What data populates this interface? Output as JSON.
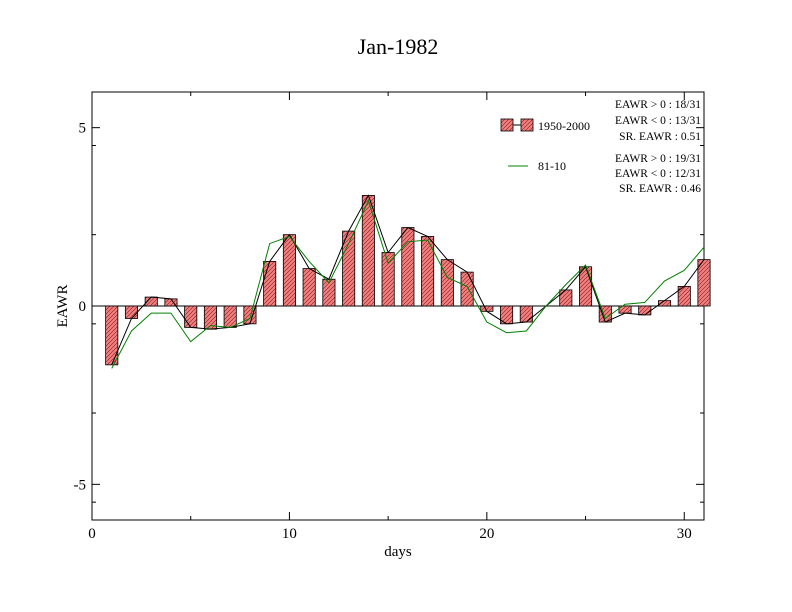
{
  "chart_data": {
    "type": "bar",
    "title": "Jan-1982",
    "xlabel": "days",
    "ylabel": "EAWR",
    "xlim": [
      0,
      31
    ],
    "ylim": [
      -6,
      6
    ],
    "xticks": [
      0,
      10,
      20,
      30
    ],
    "yticks": [
      -5,
      0,
      5
    ],
    "grid": false,
    "legend_position": "top-right",
    "x": [
      1,
      2,
      3,
      4,
      5,
      6,
      7,
      8,
      9,
      10,
      11,
      12,
      13,
      14,
      15,
      16,
      17,
      18,
      19,
      20,
      21,
      22,
      23,
      24,
      25,
      26,
      27,
      28,
      29,
      30,
      31
    ],
    "series": [
      {
        "name": "1950-2000",
        "kind": "bar",
        "fill_color": "#f08080",
        "stroke_color": "#000000",
        "values": [
          -1.65,
          -0.35,
          0.25,
          0.2,
          -0.6,
          -0.65,
          -0.6,
          -0.5,
          1.25,
          2.0,
          1.05,
          0.75,
          2.1,
          3.1,
          1.5,
          2.2,
          1.95,
          1.3,
          0.95,
          -0.15,
          -0.5,
          -0.45,
          0.0,
          0.45,
          1.1,
          -0.45,
          -0.2,
          -0.25,
          0.15,
          0.55,
          1.3
        ],
        "stats": [
          "EAWR > 0 : 18/31",
          "EAWR < 0 : 13/31",
          "SR. EAWR :  0.51"
        ]
      },
      {
        "name": "81-10",
        "kind": "line",
        "color": "#008000",
        "values": [
          -1.75,
          -0.7,
          -0.2,
          -0.2,
          -1.0,
          -0.55,
          -0.6,
          -0.35,
          1.75,
          1.95,
          1.25,
          0.65,
          1.75,
          2.95,
          1.2,
          1.8,
          1.85,
          0.8,
          0.55,
          -0.45,
          -0.75,
          -0.7,
          0.0,
          0.6,
          1.15,
          -0.35,
          0.05,
          0.1,
          0.7,
          1.0,
          1.65
        ],
        "stats": [
          "EAWR > 0 : 19/31",
          "EAWR < 0 : 12/31",
          "SR. EAWR :  0.46"
        ]
      }
    ],
    "bar_outline_line_color": "#000000"
  }
}
